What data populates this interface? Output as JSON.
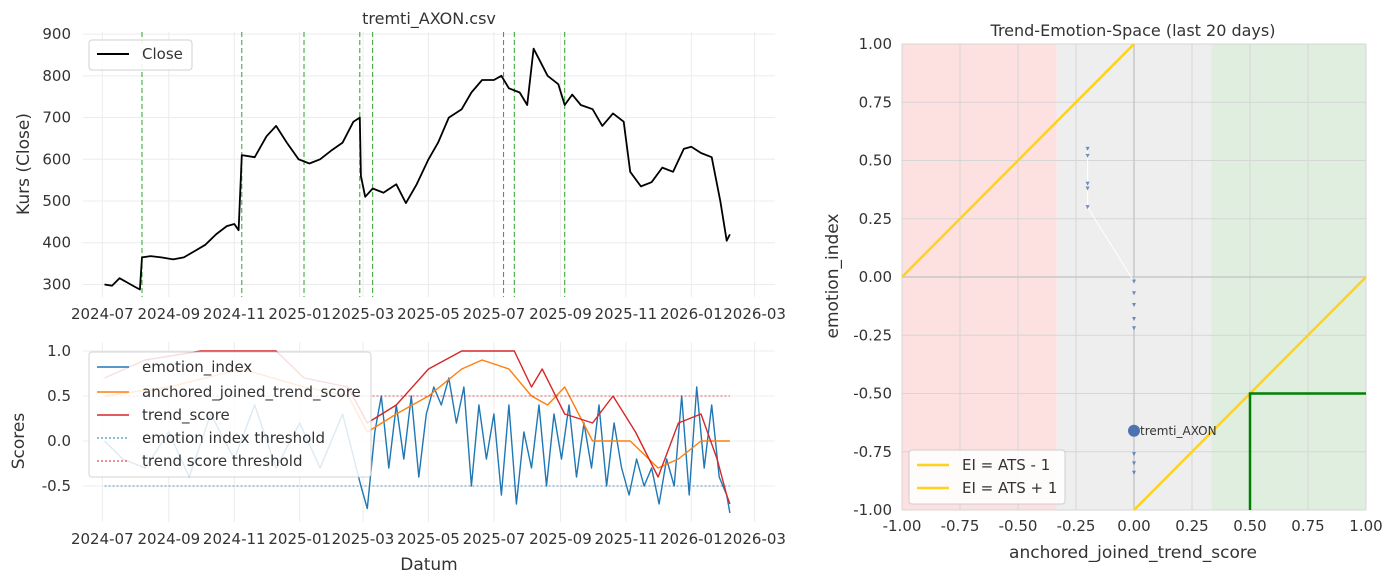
{
  "chart_data": [
    {
      "type": "line",
      "title": "tremti_AXON.csv",
      "xlabel": "",
      "ylabel": "Kurs (Close)",
      "x_tick_labels": [
        "2024-07",
        "2024-09",
        "2024-11",
        "2025-01",
        "2025-03",
        "2025-05",
        "2025-07",
        "2025-09",
        "2025-11",
        "2026-01",
        "2026-03"
      ],
      "y_ticks": [
        300,
        400,
        500,
        600,
        700,
        800,
        900
      ],
      "ylim": [
        270,
        905
      ],
      "xlim": [
        "2024-06-13",
        "2026-03-20"
      ],
      "grid": true,
      "legend_position": "upper-left",
      "series": [
        {
          "name": "Close",
          "color": "#000000",
          "points": [
            [
              "2024-07-03",
              300
            ],
            [
              "2024-07-10",
              297
            ],
            [
              "2024-07-17",
              315
            ],
            [
              "2024-07-24",
              305
            ],
            [
              "2024-07-31",
              295
            ],
            [
              "2024-08-05",
              288
            ],
            [
              "2024-08-07",
              365
            ],
            [
              "2024-08-15",
              368
            ],
            [
              "2024-08-25",
              365
            ],
            [
              "2024-09-05",
              360
            ],
            [
              "2024-09-15",
              365
            ],
            [
              "2024-09-25",
              380
            ],
            [
              "2024-10-05",
              395
            ],
            [
              "2024-10-15",
              420
            ],
            [
              "2024-10-25",
              440
            ],
            [
              "2024-11-01",
              445
            ],
            [
              "2024-11-05",
              430
            ],
            [
              "2024-11-08",
              610
            ],
            [
              "2024-11-20",
              605
            ],
            [
              "2024-12-01",
              655
            ],
            [
              "2024-12-10",
              680
            ],
            [
              "2024-12-20",
              640
            ],
            [
              "2024-12-31",
              600
            ],
            [
              "2025-01-10",
              590
            ],
            [
              "2025-01-20",
              600
            ],
            [
              "2025-01-30",
              620
            ],
            [
              "2025-02-10",
              640
            ],
            [
              "2025-02-20",
              690
            ],
            [
              "2025-02-26",
              700
            ],
            [
              "2025-02-27",
              560
            ],
            [
              "2025-03-03",
              510
            ],
            [
              "2025-03-10",
              530
            ],
            [
              "2025-03-20",
              520
            ],
            [
              "2025-04-01",
              540
            ],
            [
              "2025-04-10",
              495
            ],
            [
              "2025-04-20",
              540
            ],
            [
              "2025-05-01",
              600
            ],
            [
              "2025-05-10",
              640
            ],
            [
              "2025-05-20",
              700
            ],
            [
              "2025-06-01",
              720
            ],
            [
              "2025-06-10",
              760
            ],
            [
              "2025-06-20",
              790
            ],
            [
              "2025-07-01",
              790
            ],
            [
              "2025-07-08",
              800
            ],
            [
              "2025-07-15",
              770
            ],
            [
              "2025-07-25",
              760
            ],
            [
              "2025-08-01",
              730
            ],
            [
              "2025-08-07",
              865
            ],
            [
              "2025-08-12",
              840
            ],
            [
              "2025-08-20",
              800
            ],
            [
              "2025-08-30",
              780
            ],
            [
              "2025-09-05",
              730
            ],
            [
              "2025-09-12",
              755
            ],
            [
              "2025-09-20",
              730
            ],
            [
              "2025-10-01",
              720
            ],
            [
              "2025-10-10",
              680
            ],
            [
              "2025-10-20",
              710
            ],
            [
              "2025-10-30",
              690
            ],
            [
              "2025-11-05",
              570
            ],
            [
              "2025-11-15",
              535
            ],
            [
              "2025-11-25",
              545
            ],
            [
              "2025-12-05",
              580
            ],
            [
              "2025-12-15",
              570
            ],
            [
              "2025-12-25",
              625
            ],
            [
              "2026-01-01",
              630
            ],
            [
              "2026-01-10",
              615
            ],
            [
              "2026-01-20",
              605
            ],
            [
              "2026-01-28",
              500
            ],
            [
              "2026-02-03",
              405
            ],
            [
              "2026-02-06",
              420
            ]
          ]
        }
      ],
      "vertical_markers": {
        "color": "#2ca02c",
        "style": "dashed",
        "dates": [
          "2024-08-07",
          "2024-11-08",
          "2025-01-05",
          "2025-02-26",
          "2025-03-10",
          "2025-07-10",
          "2025-07-20",
          "2025-09-05"
        ]
      }
    },
    {
      "type": "line",
      "title": "",
      "xlabel": "Datum",
      "ylabel": "Scores",
      "x_tick_labels": [
        "2024-07",
        "2024-09",
        "2024-11",
        "2025-01",
        "2025-03",
        "2025-05",
        "2025-07",
        "2025-09",
        "2025-11",
        "2026-01",
        "2026-03"
      ],
      "y_ticks": [
        -0.5,
        0.0,
        0.5,
        1.0
      ],
      "ylim": [
        -0.9,
        1.1
      ],
      "xlim": [
        "2024-06-13",
        "2026-03-20"
      ],
      "grid": true,
      "legend_position": "upper-left",
      "series": [
        {
          "name": "emotion_index",
          "color": "#1f77b4",
          "points": [
            [
              "2024-07-03",
              0.0
            ],
            [
              "2024-07-20",
              -0.2
            ],
            [
              "2024-08-10",
              -0.3
            ],
            [
              "2024-09-01",
              0.1
            ],
            [
              "2024-09-20",
              -0.4
            ],
            [
              "2024-10-10",
              0.3
            ],
            [
              "2024-11-01",
              -0.2
            ],
            [
              "2024-11-20",
              0.4
            ],
            [
              "2024-12-10",
              -0.3
            ],
            [
              "2025-01-01",
              0.2
            ],
            [
              "2025-01-20",
              -0.3
            ],
            [
              "2025-02-10",
              0.3
            ],
            [
              "2025-02-27",
              -0.5
            ],
            [
              "2025-03-05",
              -0.75
            ],
            [
              "2025-03-12",
              0.1
            ],
            [
              "2025-03-18",
              0.5
            ],
            [
              "2025-03-25",
              -0.3
            ],
            [
              "2025-04-01",
              0.4
            ],
            [
              "2025-04-08",
              -0.2
            ],
            [
              "2025-04-15",
              0.5
            ],
            [
              "2025-04-22",
              -0.4
            ],
            [
              "2025-04-29",
              0.3
            ],
            [
              "2025-05-06",
              0.6
            ],
            [
              "2025-05-13",
              0.4
            ],
            [
              "2025-05-20",
              0.7
            ],
            [
              "2025-05-27",
              0.2
            ],
            [
              "2025-06-03",
              0.6
            ],
            [
              "2025-06-10",
              -0.5
            ],
            [
              "2025-06-17",
              0.4
            ],
            [
              "2025-06-24",
              -0.2
            ],
            [
              "2025-07-01",
              0.3
            ],
            [
              "2025-07-08",
              -0.6
            ],
            [
              "2025-07-15",
              0.4
            ],
            [
              "2025-07-22",
              -0.7
            ],
            [
              "2025-07-29",
              0.1
            ],
            [
              "2025-08-05",
              -0.3
            ],
            [
              "2025-08-12",
              0.4
            ],
            [
              "2025-08-19",
              -0.5
            ],
            [
              "2025-08-26",
              0.3
            ],
            [
              "2025-09-02",
              -0.2
            ],
            [
              "2025-09-09",
              0.4
            ],
            [
              "2025-09-16",
              -0.4
            ],
            [
              "2025-09-23",
              0.2
            ],
            [
              "2025-09-30",
              -0.3
            ],
            [
              "2025-10-07",
              0.4
            ],
            [
              "2025-10-14",
              -0.5
            ],
            [
              "2025-10-21",
              0.2
            ],
            [
              "2025-10-28",
              -0.3
            ],
            [
              "2025-11-04",
              -0.6
            ],
            [
              "2025-11-11",
              -0.2
            ],
            [
              "2025-11-18",
              -0.5
            ],
            [
              "2025-11-25",
              -0.3
            ],
            [
              "2025-12-02",
              -0.7
            ],
            [
              "2025-12-09",
              -0.2
            ],
            [
              "2025-12-16",
              -0.5
            ],
            [
              "2025-12-23",
              0.5
            ],
            [
              "2025-12-30",
              -0.6
            ],
            [
              "2026-01-06",
              0.6
            ],
            [
              "2026-01-13",
              -0.3
            ],
            [
              "2026-01-20",
              0.4
            ],
            [
              "2026-01-27",
              -0.4
            ],
            [
              "2026-02-03",
              -0.6
            ],
            [
              "2026-02-06",
              -0.8
            ]
          ]
        },
        {
          "name": "anchored_joined_trend_score",
          "color": "#ff7f0e",
          "points": [
            [
              "2024-07-03",
              0.5
            ],
            [
              "2024-09-01",
              0.6
            ],
            [
              "2024-11-08",
              0.8
            ],
            [
              "2025-01-05",
              0.6
            ],
            [
              "2025-02-15",
              0.5
            ],
            [
              "2025-03-05",
              0.1
            ],
            [
              "2025-04-01",
              0.3
            ],
            [
              "2025-05-01",
              0.5
            ],
            [
              "2025-06-01",
              0.8
            ],
            [
              "2025-06-20",
              0.9
            ],
            [
              "2025-07-15",
              0.8
            ],
            [
              "2025-08-05",
              0.5
            ],
            [
              "2025-08-20",
              0.4
            ],
            [
              "2025-09-05",
              0.6
            ],
            [
              "2025-10-01",
              0.0
            ],
            [
              "2025-11-05",
              0.0
            ],
            [
              "2025-12-01",
              -0.3
            ],
            [
              "2025-12-20",
              -0.2
            ],
            [
              "2026-01-10",
              0.0
            ],
            [
              "2026-02-06",
              0.0
            ]
          ]
        },
        {
          "name": "trend_score",
          "color": "#d62728",
          "points": [
            [
              "2024-07-03",
              0.7
            ],
            [
              "2024-08-10",
              0.9
            ],
            [
              "2024-10-01",
              1.0
            ],
            [
              "2024-12-10",
              1.0
            ],
            [
              "2025-01-05",
              0.7
            ],
            [
              "2025-02-15",
              0.6
            ],
            [
              "2025-03-05",
              0.2
            ],
            [
              "2025-04-01",
              0.4
            ],
            [
              "2025-05-01",
              0.8
            ],
            [
              "2025-06-01",
              1.0
            ],
            [
              "2025-07-20",
              1.0
            ],
            [
              "2025-08-05",
              0.6
            ],
            [
              "2025-08-15",
              0.8
            ],
            [
              "2025-09-05",
              0.3
            ],
            [
              "2025-10-01",
              0.2
            ],
            [
              "2025-10-20",
              0.5
            ],
            [
              "2025-11-10",
              0.1
            ],
            [
              "2025-12-01",
              -0.4
            ],
            [
              "2025-12-20",
              0.2
            ],
            [
              "2026-01-10",
              0.3
            ],
            [
              "2026-01-25",
              -0.2
            ],
            [
              "2026-02-03",
              -0.6
            ],
            [
              "2026-02-06",
              -0.7
            ]
          ]
        },
        {
          "name": "emotion index threshold",
          "color": "#1f77b4",
          "style": "dashed",
          "points": [
            [
              "2024-07-03",
              -0.5
            ],
            [
              "2026-02-06",
              -0.5
            ]
          ]
        },
        {
          "name": "trend score threshold",
          "color": "#d62728",
          "style": "dashed",
          "points": [
            [
              "2024-07-03",
              0.5
            ],
            [
              "2026-02-06",
              0.5
            ]
          ]
        }
      ]
    },
    {
      "type": "scatter",
      "title": "Trend-Emotion-Space (last 20 days)",
      "xlabel": "anchored_joined_trend_score",
      "ylabel": "emotion_index",
      "x_ticks": [
        -1.0,
        -0.75,
        -0.5,
        -0.25,
        0.0,
        0.25,
        0.5,
        0.75,
        1.0
      ],
      "y_ticks": [
        -1.0,
        -0.75,
        -0.5,
        -0.25,
        0.0,
        0.25,
        0.5,
        0.75,
        1.0
      ],
      "xlim": [
        -1,
        1
      ],
      "ylim": [
        -1,
        1
      ],
      "grid": true,
      "legend_position": "lower-left",
      "regions": [
        {
          "name": "bearish",
          "x_range": [
            -1.0,
            -0.333
          ],
          "color": "#fde0e0"
        },
        {
          "name": "neutral",
          "x_range": [
            -0.333,
            0.333
          ],
          "color": "#eeeeee"
        },
        {
          "name": "bullish",
          "x_range": [
            0.333,
            1.0
          ],
          "color": "#e0eedf"
        }
      ],
      "series": [
        {
          "name": "EI = ATS - 1",
          "color": "#ffd21f",
          "points": [
            [
              0,
              -1
            ],
            [
              1,
              0
            ]
          ]
        },
        {
          "name": "EI = ATS + 1",
          "color": "#ffd21f",
          "points": [
            [
              -1,
              0
            ],
            [
              0,
              1
            ]
          ]
        }
      ],
      "signal_box": {
        "color": "#008000",
        "x_from": 0.5,
        "y_to": -0.5
      },
      "trail": [
        [
          -0.2,
          0.55
        ],
        [
          -0.2,
          0.52
        ],
        [
          -0.2,
          0.4
        ],
        [
          -0.2,
          0.38
        ],
        [
          -0.2,
          0.3
        ],
        [
          0.0,
          -0.02
        ],
        [
          0.0,
          -0.07
        ],
        [
          0.0,
          -0.12
        ],
        [
          0.0,
          -0.18
        ],
        [
          0.0,
          -0.22
        ],
        [
          0.0,
          -0.76
        ],
        [
          0.0,
          -0.8
        ],
        [
          0.0,
          -0.84
        ]
      ],
      "current_point": {
        "x": 0.0,
        "y": -0.66,
        "label": "tremti_AXON",
        "color": "#4c72b0"
      }
    }
  ]
}
